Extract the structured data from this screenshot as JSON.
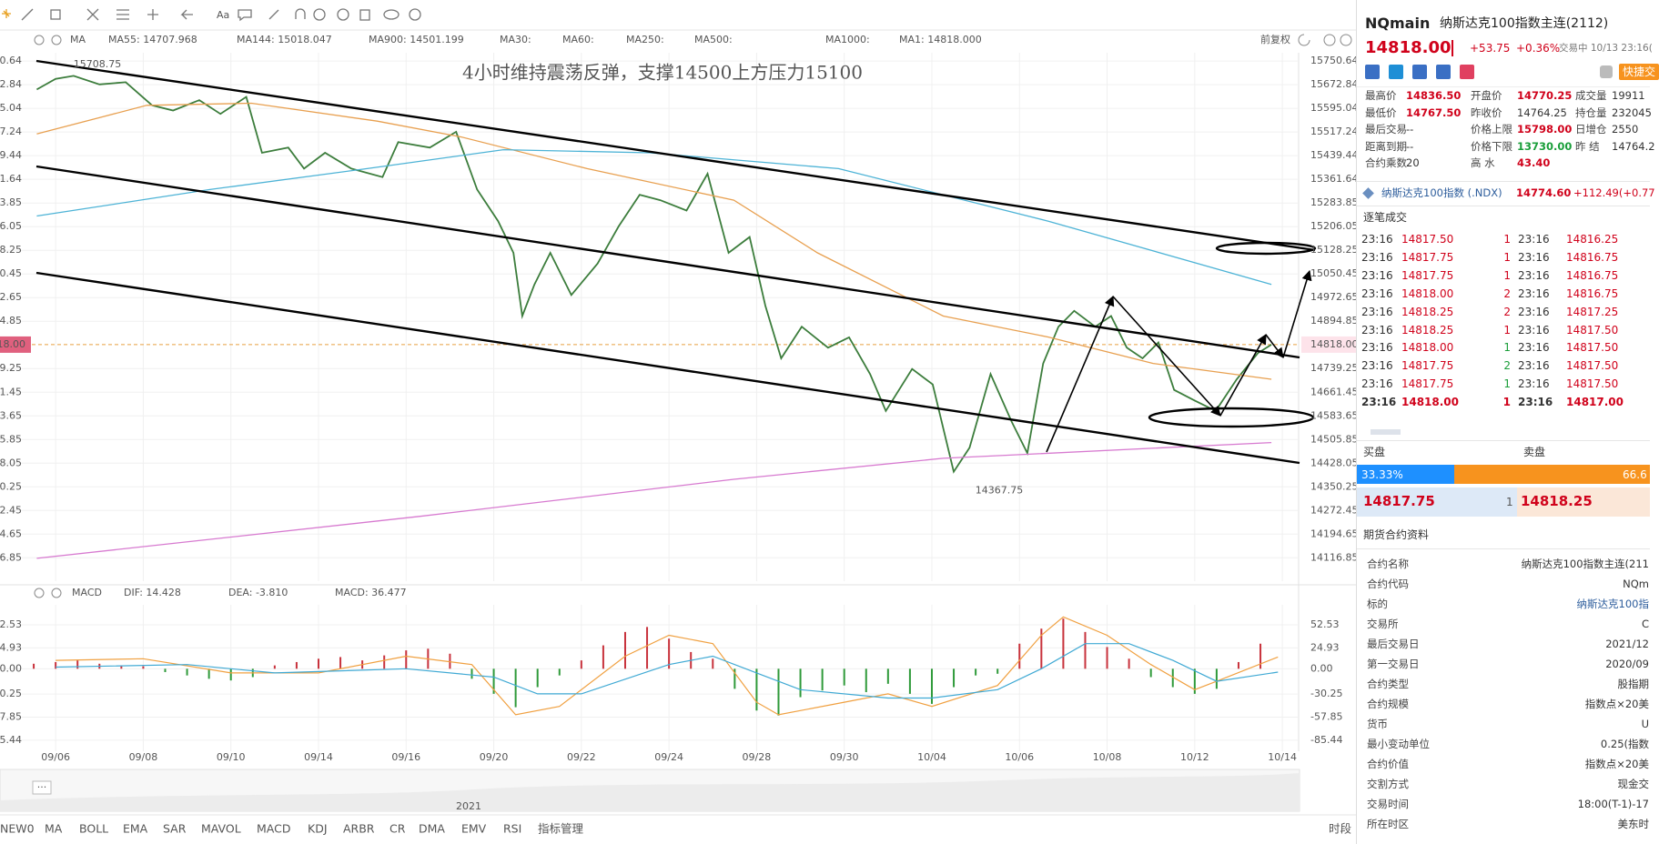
{
  "main_header": {
    "indicator": "MA",
    "items": [
      {
        "text": "MA55: 14707.968",
        "color": "#e8892a"
      },
      {
        "text": "MA144: 15018.047",
        "color": "#2fa4c8"
      },
      {
        "text": "MA900: 14501.199",
        "color": "#d050c0"
      },
      {
        "text": "MA30:",
        "color": "#a9d4e6"
      },
      {
        "text": "MA60:",
        "color": "#b9dcb9"
      },
      {
        "text": "MA250:",
        "color": "#a9c8e6"
      },
      {
        "text": "MA500:",
        "color": "#f0d6a8"
      },
      {
        "text": "MA1000:",
        "color": "#f0b4d4"
      },
      {
        "text": "MA1: 14818.000",
        "color": "#333333"
      }
    ],
    "adjust": "前复权"
  },
  "chart_data": [
    {
      "type": "line",
      "annotation": "4小时维持震荡反弹，支撑14500上方压力15100",
      "high": 15708.75,
      "low": 14367.75,
      "xlim": [
        -1.27,
        28.33
      ],
      "ylim": [
        14040,
        15778
      ],
      "yticks": [
        15750.64,
        15672.84,
        15595.04,
        15517.24,
        15439.44,
        15361.64,
        15283.85,
        15206.05,
        15128.25,
        15050.45,
        14972.65,
        14894.85,
        14739.25,
        14661.45,
        14583.65,
        14505.85,
        14428.05,
        14350.25,
        14272.45,
        14194.65,
        14116.85
      ],
      "last_price": {
        "value": 14818,
        "label": "14818.00"
      },
      "grid": true,
      "series": [
        {
          "color": "#3c7d3c",
          "x": [
            -0.43,
            0,
            0.41,
            1.0,
            1.6,
            2.2,
            2.68,
            3.28,
            3.76,
            4.35,
            4.71,
            5.31,
            5.67,
            6.15,
            6.75,
            7.46,
            7.82,
            8.54,
            9.14,
            9.62,
            10.1,
            10.45,
            10.65,
            10.93,
            11.29,
            11.77,
            12.37,
            12.85,
            13.33,
            13.8,
            14.4,
            14.88,
            15.36,
            15.84,
            16.2,
            16.56,
            17.03,
            17.63,
            18.11,
            18.59,
            18.95,
            19.55,
            20.02,
            20.5,
            20.86,
            21.34,
            21.82,
            22.18,
            22.54,
            22.89,
            23.25,
            23.73,
            24.09,
            24.45,
            24.81,
            25.17,
            25.53,
            26.0,
            26.48,
            26.96,
            27.44,
            27.75
          ],
          "values": [
            15657,
            15692,
            15702,
            15674,
            15681,
            15605,
            15588,
            15622,
            15577,
            15633,
            15449,
            15466,
            15397,
            15449,
            15397,
            15369,
            15484,
            15466,
            15518,
            15328,
            15224,
            15120,
            14912,
            15016,
            15120,
            14981,
            15085,
            15207,
            15311,
            15293,
            15259,
            15380,
            15120,
            15172,
            14946,
            14773,
            14877,
            14808,
            14842,
            14721,
            14600,
            14738,
            14687,
            14400,
            14479,
            14721,
            14565,
            14461,
            14756,
            14877,
            14929,
            14877,
            14912,
            14808,
            14773,
            14825,
            14669,
            14634,
            14600,
            14704,
            14790,
            14818
          ]
        },
        {
          "name": "MA55: 14707.968",
          "color": "#e8a050",
          "x": [
            -0.43,
            2.08,
            4.47,
            7.34,
            9.26,
            12.13,
            15.48,
            17.39,
            20.26,
            22.66,
            25.05,
            27.75
          ],
          "values": [
            15511,
            15605,
            15612,
            15553,
            15501,
            15397,
            15293,
            15120,
            14912,
            14843,
            14756,
            14704
          ]
        },
        {
          "name": "MA144: 15018.047",
          "color": "#4db3d6",
          "x": [
            -0.43,
            3.52,
            7.11,
            10.22,
            13.56,
            17.87,
            22.66,
            27.75
          ],
          "values": [
            15241,
            15328,
            15397,
            15459,
            15449,
            15397,
            15224,
            15016
          ]
        },
        {
          "name": "MA900: 14501.199",
          "color": "#d77ad0",
          "x": [
            -0.43,
            8.3,
            15.48,
            20.26,
            27.75
          ],
          "values": [
            14115,
            14253,
            14375,
            14444,
            14496
          ]
        }
      ]
    },
    {
      "type": "macd",
      "indicator": "MACD",
      "xlim": [
        -1.27,
        28.33
      ],
      "ylim": [
        -95.4,
        76.5
      ],
      "yticks": [
        52.53,
        24.93,
        {
          "value": 0,
          "label": "0.00"
        },
        -30.25,
        -57.85,
        -85.44
      ],
      "xticks": [
        {
          "value": 0,
          "label": "09/06"
        },
        {
          "value": 2,
          "label": "09/08"
        },
        {
          "value": 4,
          "label": "09/10"
        },
        {
          "value": 6,
          "label": "09/14"
        },
        {
          "value": 8,
          "label": "09/16"
        },
        {
          "value": 10,
          "label": "09/20"
        },
        {
          "value": 12,
          "label": "09/22"
        },
        {
          "value": 14,
          "label": "09/24"
        },
        {
          "value": 16,
          "label": "09/28"
        },
        {
          "value": 18,
          "label": "09/30"
        },
        {
          "value": 20,
          "label": "10/04"
        },
        {
          "value": 22,
          "label": "10/06"
        },
        {
          "value": 24,
          "label": "10/08"
        },
        {
          "value": 26,
          "label": "10/12"
        },
        {
          "value": 28,
          "label": "10/14"
        }
      ],
      "up_color": "#c8323c",
      "down_color": "#2f9a3a",
      "histogram": {
        "name": "MACD: 36.477",
        "color": "#d050c0",
        "x": [
          -0.5,
          0,
          0.5,
          1,
          1.5,
          2,
          2.5,
          3,
          3.5,
          4,
          4.5,
          5,
          5.5,
          6,
          6.5,
          7,
          7.5,
          8,
          8.5,
          9,
          9.5,
          10,
          10.5,
          11,
          11.5,
          12,
          12.5,
          13,
          13.5,
          14,
          14.5,
          15,
          15.5,
          16,
          16.5,
          17,
          17.5,
          18,
          18.5,
          19,
          19.5,
          20,
          20.5,
          21,
          21.5,
          22,
          22.5,
          23,
          23.5,
          24,
          24.5,
          25,
          25.5,
          26,
          26.5,
          27,
          27.5
        ],
        "values": [
          6,
          8,
          10,
          6,
          4,
          3,
          -4,
          -8,
          -12,
          -14,
          -10,
          4,
          8,
          12,
          14,
          10,
          16,
          22,
          24,
          18,
          -12,
          -30,
          -46,
          -22,
          -8,
          10,
          28,
          44,
          50,
          36,
          20,
          12,
          -24,
          -50,
          -56,
          -34,
          -26,
          -20,
          -28,
          -18,
          -30,
          -42,
          -22,
          -8,
          -6,
          30,
          48,
          60,
          44,
          26,
          12,
          -10,
          -22,
          -30,
          -24,
          8,
          30
        ]
      },
      "series": [
        {
          "name": "DIF: 14.428",
          "color": "#f0a040",
          "x": [
            0,
            2,
            4,
            6,
            8,
            9.5,
            10.5,
            11.5,
            13,
            14,
            15,
            16,
            16.5,
            18,
            19,
            20,
            21.5,
            22.5,
            23,
            24,
            25,
            26,
            26.5,
            27.9
          ],
          "values": [
            10,
            12,
            -5,
            -5,
            15,
            5,
            -55,
            -45,
            15,
            40,
            30,
            -40,
            -55,
            -40,
            -30,
            -45,
            -20,
            40,
            62,
            40,
            5,
            -25,
            -15,
            14
          ]
        },
        {
          "name": "DEA: -3.810",
          "color": "#3fa9d4",
          "x": [
            0,
            3,
            5,
            8,
            10,
            11,
            12,
            14,
            15,
            16,
            17,
            19,
            20,
            21.5,
            22.5,
            23.5,
            24.5,
            25.5,
            26.5,
            27.9
          ],
          "values": [
            2,
            5,
            -5,
            0,
            -10,
            -30,
            -30,
            5,
            15,
            -5,
            -25,
            -35,
            -35,
            -25,
            0,
            30,
            30,
            10,
            -15,
            -4
          ]
        }
      ]
    }
  ],
  "navigator_label": "2021",
  "tabs": [
    {
      "text": "NEW0",
      "active": false
    },
    {
      "text": "MA",
      "active": true
    },
    {
      "text": "BOLL",
      "active": false
    },
    {
      "text": "EMA",
      "active": false
    },
    {
      "text": "SAR",
      "active": false
    },
    {
      "text": "MAVOL",
      "active": false
    },
    {
      "text": "MACD",
      "active": true
    },
    {
      "text": "KDJ",
      "active": false
    },
    {
      "text": "ARBR",
      "active": false
    },
    {
      "text": "CR",
      "active": false
    },
    {
      "text": "DMA",
      "active": false
    },
    {
      "text": "EMV",
      "active": false
    },
    {
      "text": "RSI",
      "active": false
    },
    {
      "text": "指标管理",
      "active": true
    }
  ],
  "session_tab": "时段",
  "side_panel": {
    "symbol": "NQmain",
    "name": "纳斯达克100指数主连(2112)",
    "price": "14818.00",
    "change": "+53.75",
    "change_pct": "+0.36%",
    "status": "交易中 10/13 23:16(",
    "quick_trade": "快捷交",
    "stats": [
      [
        {
          "label": "最高价",
          "value": "14836.50",
          "color": "#d0021b"
        },
        {
          "label": "开盘价",
          "value": "14770.25",
          "color": "#d0021b"
        },
        {
          "label": "成交量",
          "value": "19911",
          "color": "#333333"
        }
      ],
      [
        {
          "label": "最低价",
          "value": "14767.50",
          "color": "#d0021b"
        },
        {
          "label": "昨收价",
          "value": "14764.25",
          "color": "#333333"
        },
        {
          "label": "持仓量",
          "value": "232045",
          "color": "#333333"
        }
      ],
      [
        {
          "label": "最后交易",
          "value": "--",
          "color": "#333333"
        },
        {
          "label": "价格上限",
          "value": "15798.00",
          "color": "#d0021b"
        },
        {
          "label": "日增仓",
          "value": "2550",
          "color": "#333333"
        }
      ],
      [
        {
          "label": "距离到期",
          "value": "--",
          "color": "#333333"
        },
        {
          "label": "价格下限",
          "value": "13730.00",
          "color": "#1a9e3a"
        },
        {
          "label": "昨 结",
          "value": "14764.2",
          "color": "#333333"
        }
      ],
      [
        {
          "label": "合约乘数",
          "value": "20",
          "color": "#333333"
        },
        {
          "label": "高 水",
          "value": "43.40",
          "color": "#d0021b"
        }
      ]
    ],
    "index_name": "纳斯达克100指数 (.NDX)",
    "index_price": "14774.60",
    "index_change": "+112.49(+0.77",
    "trades_title": "逐笔成交",
    "trades": [
      [
        "23:16",
        "14817.50",
        "1",
        "23:16",
        "14816.25"
      ],
      [
        "23:16",
        "14817.75",
        "1",
        "23:16",
        "14816.75"
      ],
      [
        "23:16",
        "14817.75",
        "1",
        "23:16",
        "14816.75"
      ],
      [
        "23:16",
        "14818.00",
        "2",
        "23:16",
        "14816.75"
      ],
      [
        "23:16",
        "14818.25",
        "2",
        "23:16",
        "14817.25"
      ],
      [
        "23:16",
        "14818.25",
        "1",
        "23:16",
        "14817.50"
      ],
      [
        "23:16",
        "14818.00",
        "1",
        "23:16",
        "14817.50"
      ],
      [
        "23:16",
        "14817.75",
        "2",
        "23:16",
        "14817.50"
      ],
      [
        "23:16",
        "14817.75",
        "1",
        "23:16",
        "14817.50"
      ],
      [
        "23:16",
        "14818.00",
        "1",
        "23:16",
        "14817.00"
      ]
    ],
    "trade_vol_colors": [
      "#d0021b",
      "#d0021b",
      "#d0021b",
      "#d0021b",
      "#d0021b",
      "#d0021b",
      "#1a9e3a",
      "#1a9e3a",
      "#1a9e3a",
      "#d0021b"
    ],
    "bid_title": "买盘",
    "ask_title": "卖盘",
    "bid_share": {
      "value": 33.33,
      "label": "33.33%"
    },
    "ask_share": {
      "value": 66.6,
      "label": "66.6"
    },
    "bid_price": "14817.75",
    "bid_volume": "1",
    "ask_price": "14818.25",
    "info_title": "期货合约资料",
    "info": [
      [
        "合约名称",
        "纳斯达克100指数主连(211"
      ],
      [
        "合约代码",
        "NQm"
      ],
      [
        "标的",
        "纳斯达克100指"
      ],
      [
        "交易所",
        "C"
      ],
      [
        "最后交易日",
        "2021/12"
      ],
      [
        "第一交易日",
        "2020/09"
      ],
      [
        "合约类型",
        "股指期"
      ],
      [
        "合约规模",
        "指数点×20美"
      ],
      [
        "货币",
        "U"
      ],
      [
        "最小变动单位",
        "0.25(指数"
      ],
      [
        "合约价值",
        "指数点×20美"
      ],
      [
        "交割方式",
        "现金交"
      ],
      [
        "交易时间",
        "18:00(T-1)-17"
      ],
      [
        "所在时区",
        "美东时"
      ]
    ]
  }
}
